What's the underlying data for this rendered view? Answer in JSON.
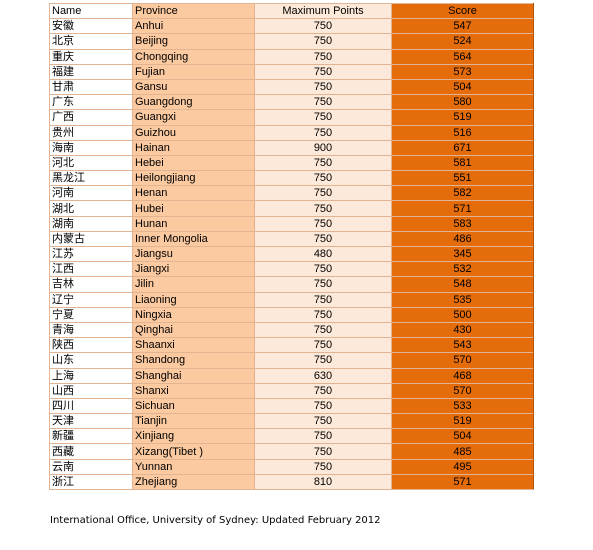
{
  "table": {
    "headers": {
      "name": "Name",
      "province": "Province",
      "max": "Maximum Points",
      "score": "Score"
    },
    "rows": [
      {
        "name": "安徽",
        "province": "Anhui",
        "max": "750",
        "score": "547"
      },
      {
        "name": "北京",
        "province": "Beijing",
        "max": "750",
        "score": "524"
      },
      {
        "name": "重庆",
        "province": "Chongqing",
        "max": "750",
        "score": "564"
      },
      {
        "name": "福建",
        "province": "Fujian",
        "max": "750",
        "score": "573"
      },
      {
        "name": "甘肃",
        "province": "Gansu",
        "max": "750",
        "score": "504"
      },
      {
        "name": "广东",
        "province": "Guangdong",
        "max": "750",
        "score": "580"
      },
      {
        "name": "广西",
        "province": "Guangxi",
        "max": "750",
        "score": "519"
      },
      {
        "name": "贵州",
        "province": "Guizhou",
        "max": "750",
        "score": "516"
      },
      {
        "name": "海南",
        "province": "Hainan",
        "max": "900",
        "score": "671"
      },
      {
        "name": "河北",
        "province": "Hebei",
        "max": "750",
        "score": "581"
      },
      {
        "name": "黑龙江",
        "province": "Heilongjiang",
        "max": "750",
        "score": "551"
      },
      {
        "name": "河南",
        "province": "Henan",
        "max": "750",
        "score": "582"
      },
      {
        "name": "湖北",
        "province": "Hubei",
        "max": "750",
        "score": "571"
      },
      {
        "name": "湖南",
        "province": "Hunan",
        "max": "750",
        "score": "583"
      },
      {
        "name": "内蒙古",
        "province": "Inner Mongolia",
        "max": "750",
        "score": "486"
      },
      {
        "name": "江苏",
        "province": "Jiangsu",
        "max": "480",
        "score": "345"
      },
      {
        "name": "江西",
        "province": "Jiangxi",
        "max": "750",
        "score": "532"
      },
      {
        "name": "吉林",
        "province": "Jilin",
        "max": "750",
        "score": "548"
      },
      {
        "name": "辽宁",
        "province": "Liaoning",
        "max": "750",
        "score": "535"
      },
      {
        "name": "宁夏",
        "province": "Ningxia",
        "max": "750",
        "score": "500"
      },
      {
        "name": "青海",
        "province": "Qinghai",
        "max": "750",
        "score": "430"
      },
      {
        "name": "陕西",
        "province": "Shaanxi",
        "max": "750",
        "score": "543"
      },
      {
        "name": "山东",
        "province": "Shandong",
        "max": "750",
        "score": "570"
      },
      {
        "name": "上海",
        "province": "Shanghai",
        "max": "630",
        "score": "468"
      },
      {
        "name": "山西",
        "province": "Shanxi",
        "max": "750",
        "score": "570"
      },
      {
        "name": "四川",
        "province": "Sichuan",
        "max": "750",
        "score": "533"
      },
      {
        "name": "天津",
        "province": "Tianjin",
        "max": "750",
        "score": "519"
      },
      {
        "name": "新疆",
        "province": "Xinjiang",
        "max": "750",
        "score": "504"
      },
      {
        "name": "西藏",
        "province": "Xizang(Tibet )",
        "max": "750",
        "score": "485"
      },
      {
        "name": "云南",
        "province": "Yunnan",
        "max": "750",
        "score": "495"
      },
      {
        "name": "浙江",
        "province": "Zhejiang",
        "max": "810",
        "score": "571"
      }
    ]
  },
  "footnote": "International Office, University of Sydney: Updated February 2012",
  "colors": {
    "province_col": "#fbcaa1",
    "max_col": "#fde9d9",
    "score_col": "#e46c0a"
  }
}
